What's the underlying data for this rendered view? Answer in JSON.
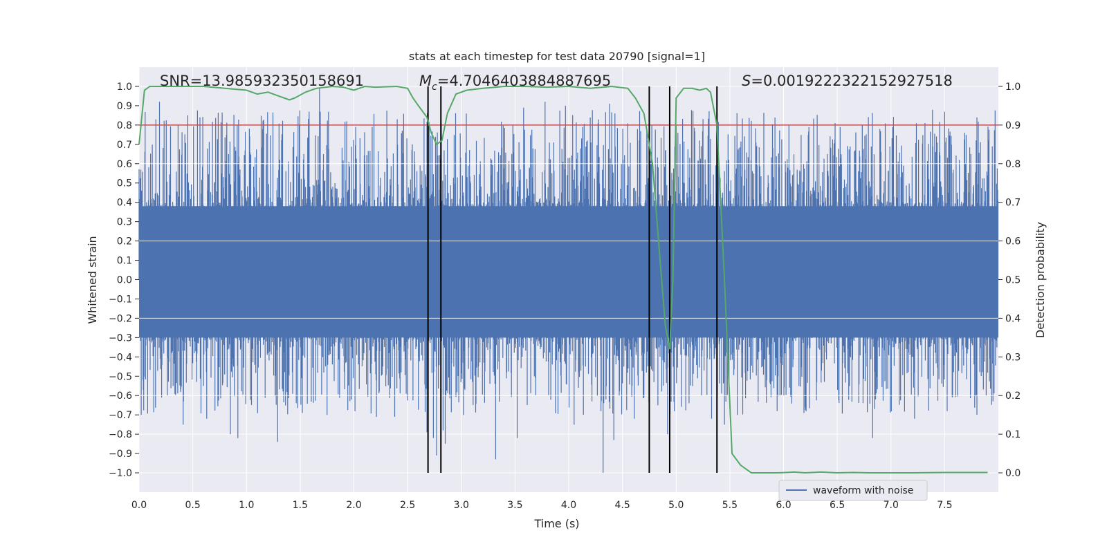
{
  "chart_data": {
    "type": "line",
    "title": "stats at each timestep for test data 20790 [signal=1]",
    "xlabel": "Time (s)",
    "ylabel": "Whitened strain",
    "y2label": "Detection probability",
    "xlim": [
      0.0,
      8.0
    ],
    "ylim": [
      -1.1,
      1.1
    ],
    "y2lim": [
      -0.05,
      1.05
    ],
    "x_ticks": [
      "0.0",
      "0.5",
      "1.0",
      "1.5",
      "2.0",
      "2.5",
      "3.0",
      "3.5",
      "4.0",
      "4.5",
      "5.0",
      "5.5",
      "6.0",
      "6.5",
      "7.0",
      "7.5"
    ],
    "y_ticks": [
      "1.0",
      "0.9",
      "0.8",
      "0.7",
      "0.6",
      "0.5",
      "0.4",
      "0.3",
      "0.2",
      "0.1",
      "0.0",
      "−0.1",
      "−0.2",
      "−0.3",
      "−0.4",
      "−0.5",
      "−0.6",
      "−0.7",
      "−0.8",
      "−0.9",
      "−1.0"
    ],
    "y2_ticks": [
      "1.0",
      "0.9",
      "0.8",
      "0.7",
      "0.6",
      "0.5",
      "0.4",
      "0.3",
      "0.2",
      "0.1",
      "0.0"
    ],
    "annotations": {
      "snr": "SNR=13.985932350158691",
      "mc_symbol": "M",
      "mc_sub": "c",
      "mc_value": "=4.7046403884887695",
      "s_symbol": "S",
      "s_value": "=0.0019222322152927518"
    },
    "legend": {
      "label": "waveform with noise",
      "location": "bottom-right"
    },
    "threshold_probability": 0.9,
    "vertical_lines_s": [
      2.69,
      2.81,
      4.75,
      4.94,
      5.38
    ],
    "waveform": {
      "name": "waveform with noise",
      "duration_s": 8.0,
      "core_band": [
        -0.3,
        0.38
      ],
      "spikes": [
        [
          0.02,
          -0.7
        ],
        [
          0.19,
          0.92
        ],
        [
          0.21,
          -0.61
        ],
        [
          0.41,
          -0.75
        ],
        [
          0.63,
          -0.72
        ],
        [
          0.85,
          -0.8
        ],
        [
          0.92,
          -0.82
        ],
        [
          1.29,
          -0.84
        ],
        [
          1.52,
          -0.69
        ],
        [
          1.68,
          0.99
        ],
        [
          1.75,
          -0.7
        ],
        [
          2.21,
          -0.71
        ],
        [
          2.38,
          -0.71
        ],
        [
          2.68,
          -0.79
        ],
        [
          2.74,
          -0.82
        ],
        [
          2.77,
          -0.91
        ],
        [
          2.83,
          -0.78
        ],
        [
          2.85,
          -0.85
        ],
        [
          3.02,
          -0.7
        ],
        [
          3.32,
          -0.93
        ],
        [
          3.52,
          -0.82
        ],
        [
          3.58,
          0.89
        ],
        [
          3.78,
          0.92
        ],
        [
          3.97,
          0.9
        ],
        [
          4.05,
          -0.75
        ],
        [
          4.32,
          -1.0
        ],
        [
          4.38,
          0.91
        ],
        [
          4.42,
          -0.83
        ],
        [
          4.61,
          -0.72
        ],
        [
          4.73,
          0.72
        ],
        [
          4.83,
          -0.65
        ],
        [
          4.92,
          -0.8
        ],
        [
          5.12,
          -0.64
        ],
        [
          5.33,
          -0.72
        ],
        [
          5.45,
          -0.75
        ],
        [
          5.57,
          -0.7
        ],
        [
          6.48,
          0.81
        ],
        [
          6.83,
          -0.82
        ],
        [
          7.22,
          -0.72
        ],
        [
          7.8,
          0.84
        ],
        [
          7.95,
          -0.63
        ]
      ]
    },
    "probability": {
      "name": "detection probability",
      "x": [
        0.0,
        0.05,
        0.1,
        0.2,
        0.4,
        0.6,
        0.8,
        1.0,
        1.1,
        1.2,
        1.3,
        1.4,
        1.45,
        1.55,
        1.65,
        1.8,
        1.9,
        2.0,
        2.1,
        2.2,
        2.4,
        2.5,
        2.55,
        2.6,
        2.68,
        2.72,
        2.77,
        2.82,
        2.87,
        2.95,
        3.05,
        3.2,
        3.4,
        3.6,
        3.8,
        4.0,
        4.2,
        4.4,
        4.55,
        4.62,
        4.7,
        4.78,
        4.85,
        4.9,
        4.94,
        4.97,
        5.0,
        5.07,
        5.15,
        5.22,
        5.28,
        5.32,
        5.38,
        5.45,
        5.52,
        5.6,
        5.7,
        5.8,
        5.95,
        6.1,
        6.2,
        6.35,
        6.5,
        6.65,
        6.8,
        7.0,
        7.2,
        7.5,
        7.9
      ],
      "y": [
        0.85,
        0.99,
        1.0,
        1.0,
        1.0,
        1.0,
        0.995,
        0.99,
        0.98,
        0.985,
        0.975,
        0.965,
        0.97,
        0.985,
        0.995,
        1.0,
        0.998,
        0.99,
        1.0,
        0.998,
        1.0,
        0.995,
        0.97,
        0.95,
        0.92,
        0.88,
        0.85,
        0.86,
        0.93,
        0.98,
        0.99,
        0.995,
        1.0,
        1.0,
        0.998,
        1.0,
        0.995,
        1.0,
        0.995,
        0.97,
        0.93,
        0.8,
        0.55,
        0.38,
        0.32,
        0.5,
        0.97,
        0.995,
        0.995,
        0.99,
        0.995,
        0.985,
        0.9,
        0.5,
        0.05,
        0.02,
        0.0,
        0.0,
        0.0,
        0.002,
        0.0,
        0.002,
        0.0,
        0.001,
        0.0,
        0.0,
        0.0,
        0.001,
        0.001
      ]
    },
    "colors": {
      "background": "#EAEAF2",
      "grid": "#FFFFFF",
      "waveform": "#4C72B0",
      "probability": "#55A868",
      "threshold": "#C44E52",
      "vertical_lines": "#000000",
      "text": "#262626"
    }
  }
}
